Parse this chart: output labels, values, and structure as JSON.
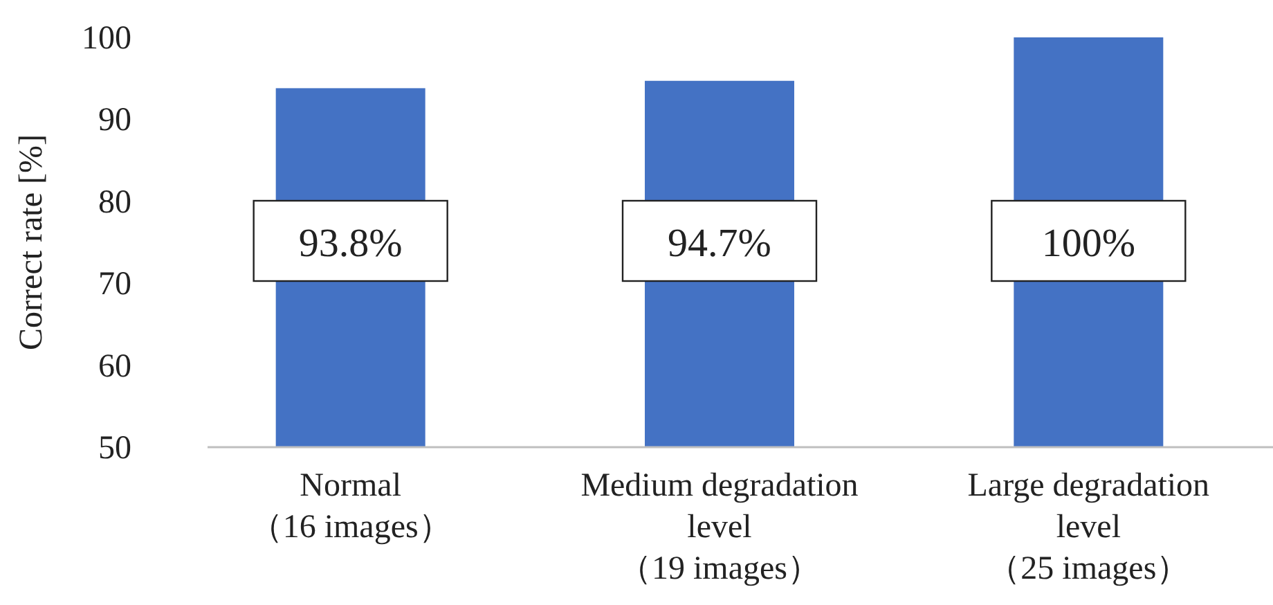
{
  "chart_data": {
    "type": "bar",
    "ylabel": "Correct rate [%]",
    "categories": [
      "Normal\n（16 images）",
      "Medium degradation\nlevel\n（19 images）",
      "Large degradation\nlevel\n（25 images）"
    ],
    "values": [
      93.8,
      94.7,
      100
    ],
    "value_labels": [
      "93.8%",
      "94.7%",
      "100%"
    ],
    "color": "#4472c4",
    "ylim": [
      50,
      100
    ],
    "yticks": [
      50,
      60,
      70,
      80,
      90,
      100
    ],
    "grid": false
  }
}
